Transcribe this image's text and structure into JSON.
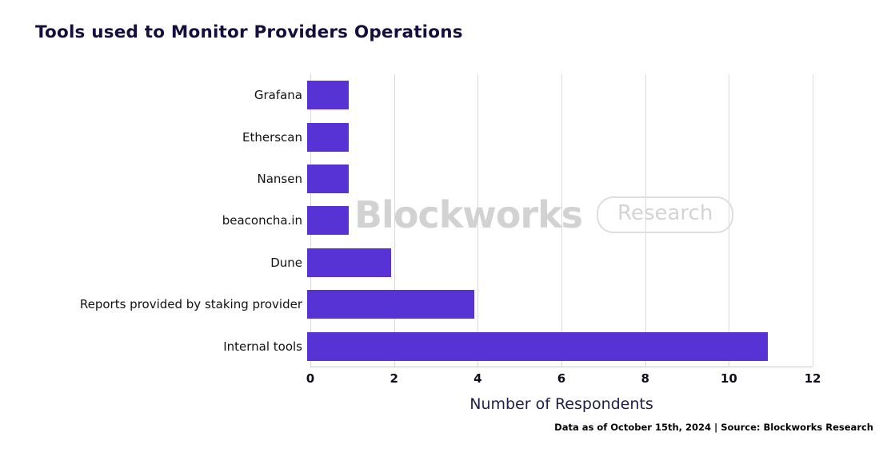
{
  "title": "Tools used to Monitor Providers Operations",
  "watermark": {
    "brand": "Blockworks",
    "badge": "Research"
  },
  "footer": "Data as of October 15th, 2024 | Source: Blockworks Research",
  "colors": {
    "bar": "#5733d6",
    "title": "#160f3e",
    "grid": "#d9d9d9",
    "axis_label": "#201d46",
    "watermark": "#d2d2d2"
  },
  "chart_data": {
    "type": "bar",
    "orientation": "horizontal",
    "title": "Tools used to Monitor Providers Operations",
    "categories": [
      "Grafana",
      "Etherscan",
      "Nansen",
      "beaconcha.in",
      "Dune",
      "Reports provided by staking provider",
      "Internal tools"
    ],
    "values": [
      1,
      1,
      1,
      1,
      2,
      4,
      11
    ],
    "xlabel": "Number of Respondents",
    "ylabel": "",
    "xlim": [
      0,
      12
    ],
    "xticks": [
      0,
      2,
      4,
      6,
      8,
      10,
      12
    ],
    "grid": "vertical-gridlines-on",
    "legend": "none"
  }
}
